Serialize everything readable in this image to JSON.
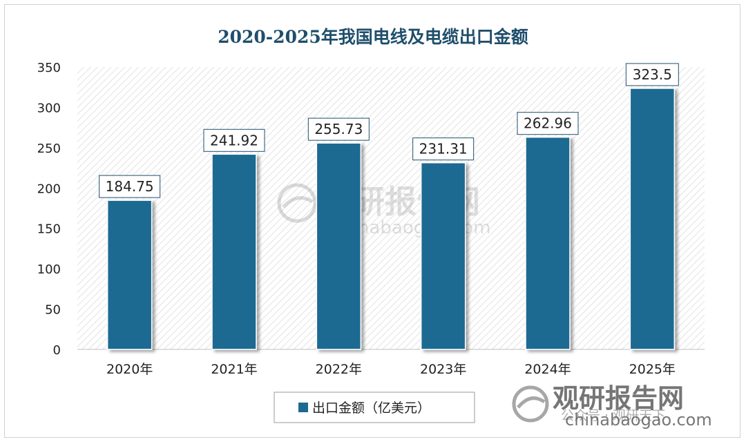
{
  "chart_data": {
    "type": "bar",
    "title": "2020-2025年我国电线及电缆出口金额",
    "categories": [
      "2020年",
      "2021年",
      "2022年",
      "2023年",
      "2024年",
      "2025年"
    ],
    "series": [
      {
        "name": "出口金额（亿美元）",
        "values": [
          184.75,
          241.92,
          255.73,
          231.31,
          262.96,
          323.5
        ]
      }
    ],
    "data_labels": [
      "184.75",
      "241.92",
      "255.73",
      "231.31",
      "262.96",
      "323.5"
    ],
    "ylim": [
      0,
      350
    ],
    "yticks": [
      0,
      50,
      100,
      150,
      200,
      250,
      300,
      350
    ],
    "grid": false,
    "legend_position": "bottom-left",
    "colors": {
      "bar": "#1b6a92",
      "title": "#1f4e6b",
      "text": "#222222",
      "hatch": "#e2e2e2"
    }
  },
  "watermark": {
    "center_text": "观研报告网",
    "center_url": "chinabaogao.com",
    "corner_text": "观研报告网",
    "corner_url": "chinabaogao.com",
    "corner_account": "公众号 · 观研天下"
  }
}
